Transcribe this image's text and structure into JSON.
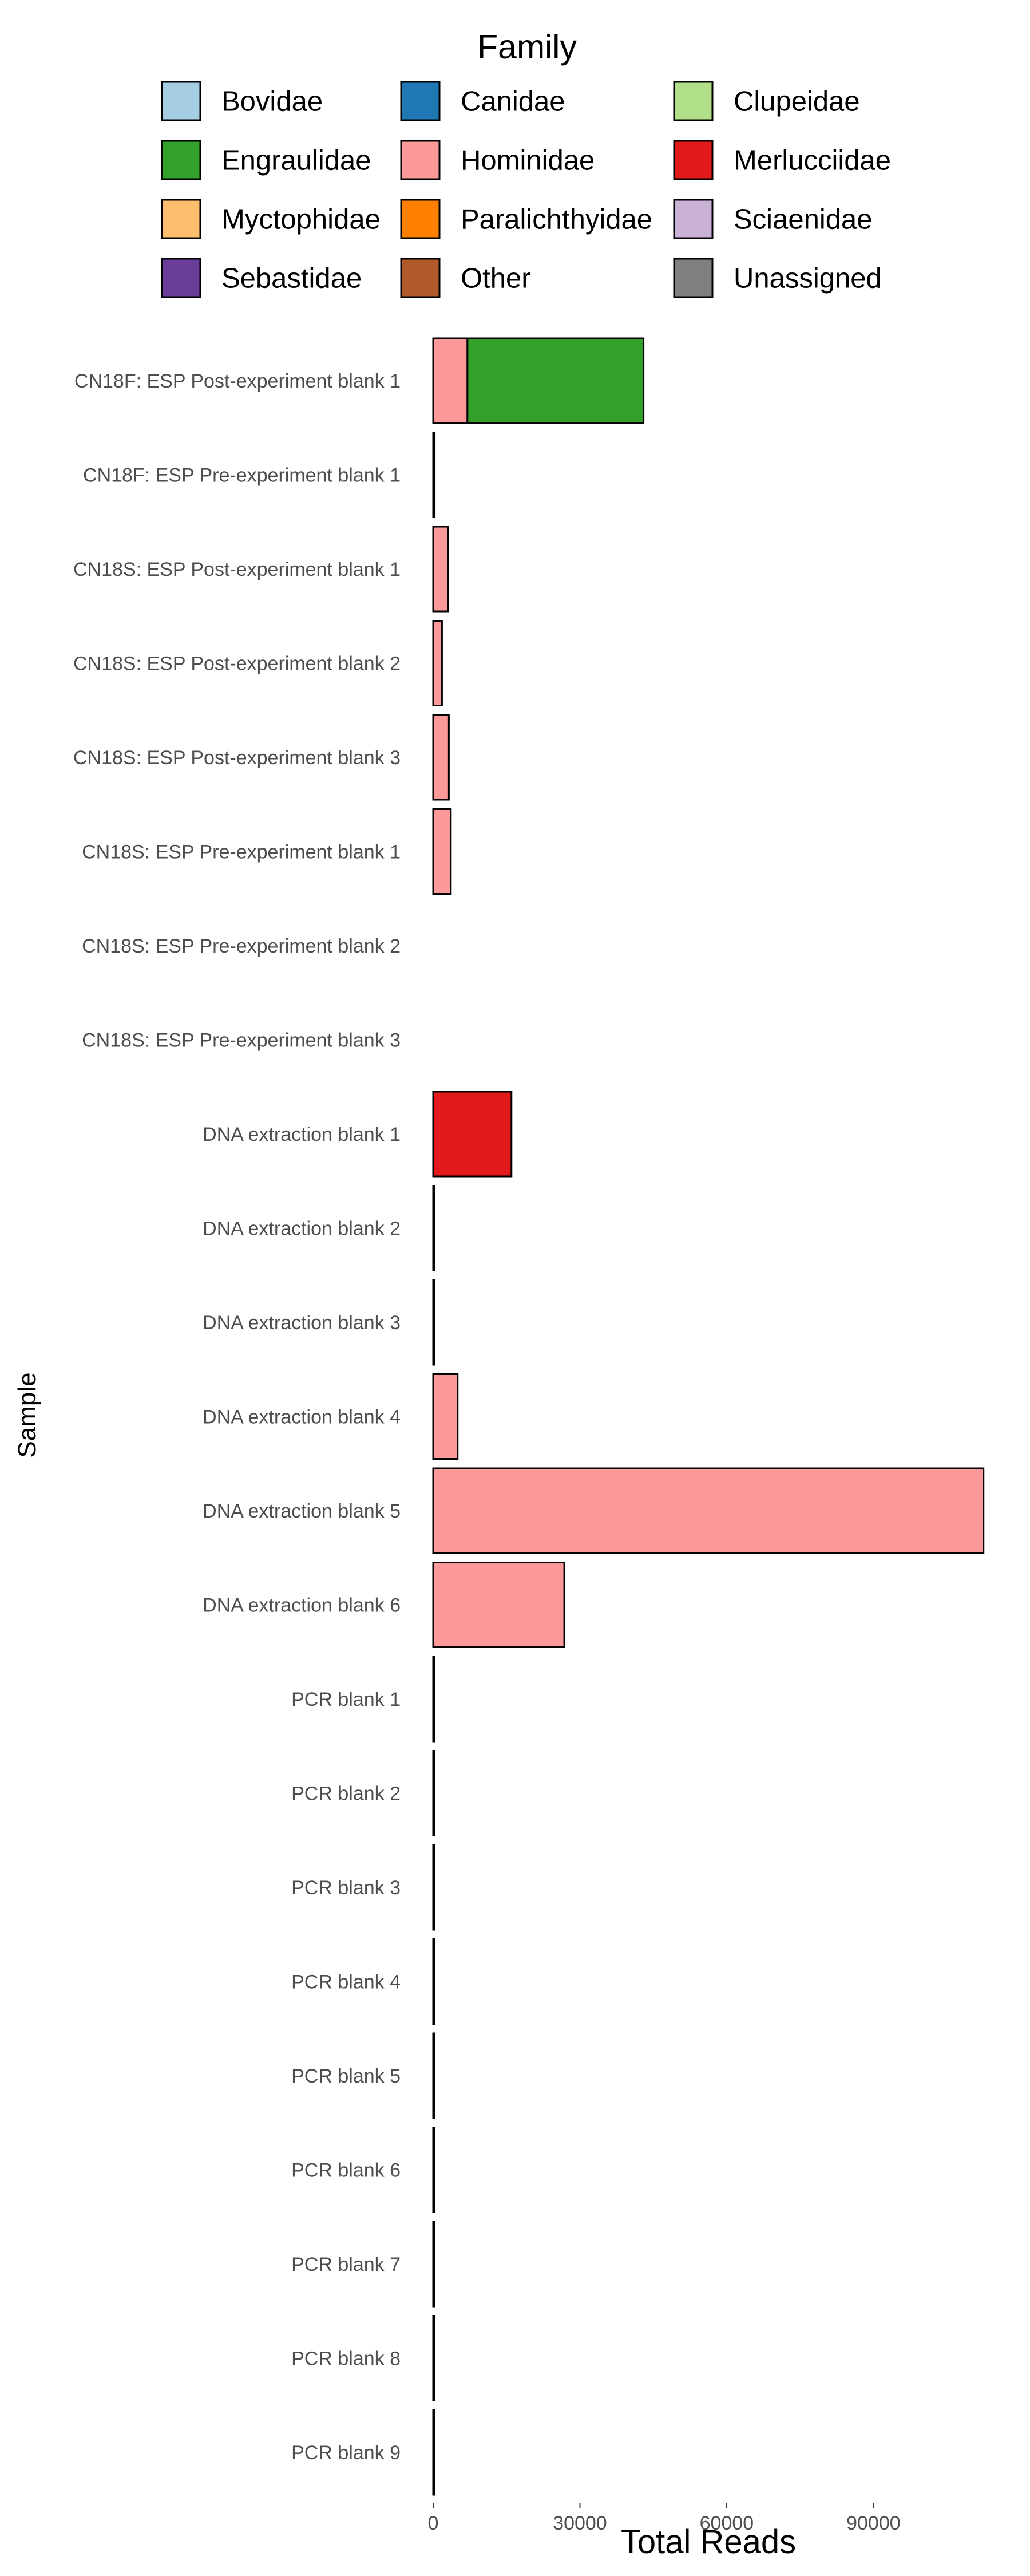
{
  "chart_data": {
    "type": "bar",
    "orientation": "horizontal",
    "stacked": true,
    "xlabel": "Total Reads",
    "ylabel": "Sample",
    "xlim": [
      0,
      113000
    ],
    "xticks": [
      0,
      30000,
      60000,
      90000
    ],
    "xtick_labels": [
      "0",
      "30000",
      "60000",
      "90000"
    ],
    "grid": false,
    "legend": {
      "title": "Family",
      "placement": "top",
      "columns": 3,
      "entries": [
        {
          "label": "Bovidae",
          "color": "#a6cee3"
        },
        {
          "label": "Canidae",
          "color": "#1f78b4"
        },
        {
          "label": "Clupeidae",
          "color": "#b2df8a"
        },
        {
          "label": "Engraulidae",
          "color": "#33a02c"
        },
        {
          "label": "Hominidae",
          "color": "#fb9a99"
        },
        {
          "label": "Merlucciidae",
          "color": "#e31a1c"
        },
        {
          "label": "Myctophidae",
          "color": "#fdbf6f"
        },
        {
          "label": "Paralichthyidae",
          "color": "#ff7f00"
        },
        {
          "label": "Sciaenidae",
          "color": "#cab2d6"
        },
        {
          "label": "Sebastidae",
          "color": "#6a3d9a"
        },
        {
          "label": "Other",
          "color": "#b15928"
        },
        {
          "label": "Unassigned",
          "color": "#808080"
        }
      ]
    },
    "categories": [
      "CN18F: ESP Post-experiment blank 1",
      "CN18F: ESP Pre-experiment blank 1",
      "CN18S: ESP Post-experiment blank 1",
      "CN18S: ESP Post-experiment blank 2",
      "CN18S: ESP Post-experiment blank 3",
      "CN18S: ESP Pre-experiment blank 1",
      "CN18S: ESP Pre-experiment blank 2",
      "CN18S: ESP Pre-experiment blank 3",
      "DNA extraction blank 1",
      "DNA extraction blank 2",
      "DNA extraction blank 3",
      "DNA extraction blank 4",
      "DNA extraction blank 5",
      "DNA extraction blank 6",
      "PCR blank 1",
      "PCR blank 2",
      "PCR blank 3",
      "PCR blank 4",
      "PCR blank 5",
      "PCR blank 6",
      "PCR blank 7",
      "PCR blank 8",
      "PCR blank 9"
    ],
    "series": [
      {
        "name": "Hominidae",
        "color": "#fb9a99",
        "values": [
          7000,
          300,
          3000,
          1800,
          3200,
          3600,
          0,
          0,
          0,
          100,
          50,
          5000,
          112500,
          26800,
          80,
          100,
          50,
          50,
          200,
          50,
          50,
          100,
          200
        ]
      },
      {
        "name": "Engraulidae",
        "color": "#33a02c",
        "values": [
          36000,
          0,
          0,
          0,
          0,
          0,
          0,
          0,
          0,
          0,
          0,
          0,
          0,
          0,
          0,
          0,
          0,
          0,
          0,
          0,
          0,
          0,
          0
        ]
      },
      {
        "name": "Merlucciidae",
        "color": "#e31a1c",
        "values": [
          0,
          0,
          0,
          0,
          0,
          0,
          0,
          0,
          16000,
          0,
          0,
          0,
          0,
          0,
          0,
          0,
          0,
          0,
          0,
          0,
          0,
          0,
          0
        ]
      }
    ]
  }
}
